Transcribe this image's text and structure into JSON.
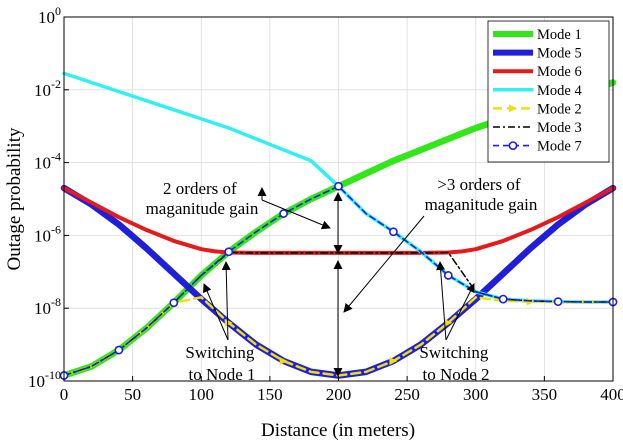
{
  "chart_data": {
    "type": "line",
    "title": "",
    "xlabel": "Distance (in meters)",
    "ylabel": "Outage probability",
    "xlim": [
      0,
      400
    ],
    "ylim_log10": [
      -10,
      0
    ],
    "y_scale": "log",
    "grid": true,
    "legend_position": "top-right",
    "x_ticks": [
      {
        "value": 0,
        "label": "0"
      },
      {
        "value": 50,
        "label": "50"
      },
      {
        "value": 100,
        "label": "100"
      },
      {
        "value": 150,
        "label": "150"
      },
      {
        "value": 200,
        "label": "200"
      },
      {
        "value": 250,
        "label": "250"
      },
      {
        "value": 300,
        "label": "300"
      },
      {
        "value": 350,
        "label": "350"
      },
      {
        "value": 400,
        "label": "400"
      }
    ],
    "y_ticks": [
      {
        "exp": 0,
        "base": "10",
        "sup": "0"
      },
      {
        "exp": -2,
        "base": "10",
        "sup": "-2"
      },
      {
        "exp": -4,
        "base": "10",
        "sup": "-4"
      },
      {
        "exp": -6,
        "base": "10",
        "sup": "-6"
      },
      {
        "exp": -8,
        "base": "10",
        "sup": "-8"
      },
      {
        "exp": -10,
        "base": "10",
        "sup": "-10"
      }
    ],
    "series": [
      {
        "name": "Mode 1",
        "color": "#33e61a",
        "style": "solid",
        "marker": "none",
        "x": [
          0,
          20,
          40,
          60,
          80,
          100,
          120,
          140,
          160,
          180,
          200,
          220,
          240,
          260,
          280,
          300,
          320,
          340,
          360,
          380,
          400
        ],
        "log10_y": [
          -9.85,
          -9.6,
          -9.15,
          -8.55,
          -7.85,
          -7.1,
          -6.45,
          -5.9,
          -5.4,
          -5.0,
          -4.65,
          -4.3,
          -3.95,
          -3.65,
          -3.35,
          -3.05,
          -2.8,
          -2.55,
          -2.3,
          -2.05,
          -1.8
        ]
      },
      {
        "name": "Mode 5",
        "color": "#1f1fd9",
        "style": "solid",
        "marker": "none",
        "x": [
          0,
          20,
          40,
          60,
          80,
          100,
          120,
          140,
          160,
          180,
          200,
          220,
          240,
          260,
          280,
          300,
          320,
          340,
          360,
          380,
          400
        ],
        "log10_y": [
          -4.7,
          -5.15,
          -5.7,
          -6.35,
          -7.05,
          -7.75,
          -8.4,
          -9.0,
          -9.45,
          -9.75,
          -9.85,
          -9.75,
          -9.45,
          -9.0,
          -8.4,
          -7.75,
          -7.05,
          -6.35,
          -5.7,
          -5.15,
          -4.7
        ]
      },
      {
        "name": "Mode 6",
        "color": "#e61a1a",
        "style": "solid",
        "marker": "none",
        "x": [
          0,
          20,
          40,
          60,
          80,
          100,
          110,
          120,
          140,
          160,
          180,
          200,
          220,
          240,
          260,
          280,
          290,
          300,
          320,
          340,
          360,
          380,
          400
        ],
        "log10_y": [
          -4.7,
          -5.1,
          -5.5,
          -5.85,
          -6.15,
          -6.38,
          -6.44,
          -6.47,
          -6.48,
          -6.48,
          -6.48,
          -6.48,
          -6.48,
          -6.48,
          -6.48,
          -6.47,
          -6.44,
          -6.38,
          -6.15,
          -5.85,
          -5.5,
          -5.1,
          -4.7
        ]
      },
      {
        "name": "Mode 4",
        "color": "#33f0f0",
        "style": "solid",
        "marker": "none",
        "x": [
          0,
          20,
          40,
          60,
          80,
          100,
          120,
          140,
          160,
          180,
          200,
          220,
          240,
          260,
          280,
          300,
          320,
          340,
          360,
          380,
          400
        ],
        "log10_y": [
          -1.55,
          -1.8,
          -2.05,
          -2.3,
          -2.55,
          -2.8,
          -3.05,
          -3.35,
          -3.65,
          -3.95,
          -4.65,
          -5.4,
          -5.9,
          -6.45,
          -7.1,
          -7.55,
          -7.75,
          -7.8,
          -7.82,
          -7.83,
          -7.83
        ]
      },
      {
        "name": "Mode 2",
        "color": "#f0e000",
        "style": "dashed",
        "marker": "arrow",
        "x": [
          0,
          20,
          40,
          60,
          80,
          100,
          120,
          140,
          160,
          180,
          200,
          220,
          240,
          260,
          280,
          300,
          320,
          340,
          360,
          380,
          400
        ],
        "log10_y": [
          -9.85,
          -9.6,
          -9.15,
          -8.55,
          -7.85,
          -7.7,
          -8.4,
          -9.0,
          -9.45,
          -9.75,
          -9.85,
          -9.75,
          -9.45,
          -9.0,
          -8.4,
          -7.7,
          -7.8,
          -7.82,
          -7.83,
          -7.83,
          -7.83
        ]
      },
      {
        "name": "Mode 3",
        "color": "#000000",
        "style": "dashdot",
        "marker": "none",
        "x": [
          0,
          20,
          40,
          60,
          80,
          100,
          120,
          140,
          160,
          180,
          200,
          220,
          240,
          260,
          280,
          300,
          320,
          340,
          360,
          380,
          400
        ],
        "log10_y": [
          -9.85,
          -9.6,
          -9.15,
          -8.55,
          -7.85,
          -7.1,
          -6.47,
          -6.48,
          -6.48,
          -6.48,
          -6.48,
          -6.48,
          -6.48,
          -6.48,
          -6.47,
          -7.55,
          -7.75,
          -7.8,
          -7.82,
          -7.83,
          -7.83
        ]
      },
      {
        "name": "Mode 7",
        "color": "#1f1fd9",
        "style": "dashed",
        "marker": "circle",
        "x": [
          0,
          20,
          40,
          60,
          80,
          100,
          120,
          140,
          160,
          180,
          200,
          220,
          240,
          260,
          280,
          300,
          320,
          340,
          360,
          380,
          400
        ],
        "log10_y": [
          -9.85,
          -9.6,
          -9.15,
          -8.55,
          -7.85,
          -7.1,
          -6.45,
          -5.9,
          -5.4,
          -5.0,
          -4.65,
          -5.4,
          -5.9,
          -6.45,
          -7.1,
          -7.55,
          -7.75,
          -7.8,
          -7.82,
          -7.83,
          -7.83
        ],
        "marker_x": [
          0,
          40,
          80,
          120,
          160,
          200,
          240,
          280,
          320,
          360,
          400
        ]
      }
    ],
    "annotations": [
      {
        "id": "ann-2orders",
        "lines": [
          "2 orders of",
          "maganitude gain"
        ]
      },
      {
        "id": "ann-3orders",
        "lines": [
          ">3 orders of",
          "maganitude gain"
        ]
      },
      {
        "id": "ann-switch1",
        "lines": [
          "Switching",
          "to Node 1"
        ]
      },
      {
        "id": "ann-switch2",
        "lines": [
          "Switching",
          "to Node 2"
        ]
      }
    ]
  }
}
